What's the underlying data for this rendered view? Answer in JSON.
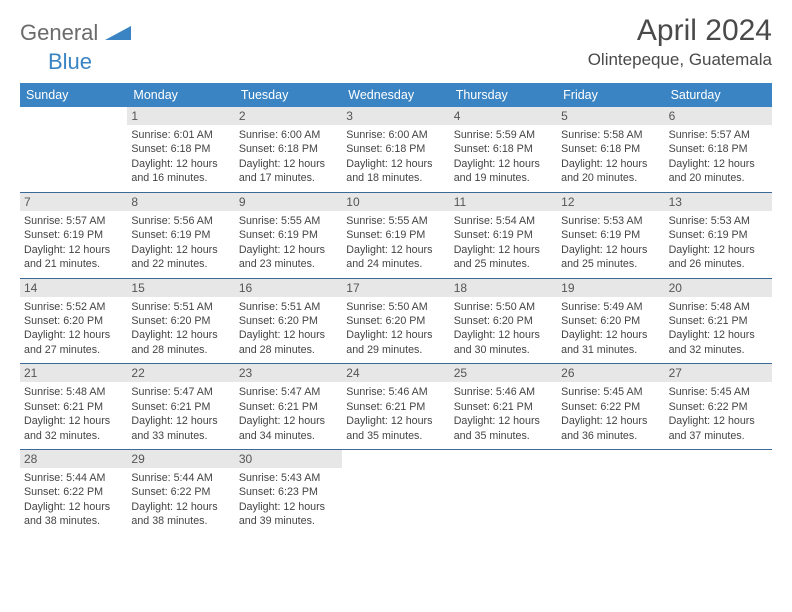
{
  "logo": {
    "part1": "General",
    "part2": "Blue"
  },
  "title": "April 2024",
  "location": "Olintepeque, Guatemala",
  "dayNames": [
    "Sunday",
    "Monday",
    "Tuesday",
    "Wednesday",
    "Thursday",
    "Friday",
    "Saturday"
  ],
  "colors": {
    "headerBlue": "#3a84c4",
    "rowBorder": "#3a6a98",
    "dayNumBg": "#e7e7e7",
    "textGray": "#4a4a4a"
  },
  "weeks": [
    [
      {
        "n": "",
        "empty": true
      },
      {
        "n": "1",
        "sr": "6:01 AM",
        "ss": "6:18 PM",
        "dl": "12 hours and 16 minutes."
      },
      {
        "n": "2",
        "sr": "6:00 AM",
        "ss": "6:18 PM",
        "dl": "12 hours and 17 minutes."
      },
      {
        "n": "3",
        "sr": "6:00 AM",
        "ss": "6:18 PM",
        "dl": "12 hours and 18 minutes."
      },
      {
        "n": "4",
        "sr": "5:59 AM",
        "ss": "6:18 PM",
        "dl": "12 hours and 19 minutes."
      },
      {
        "n": "5",
        "sr": "5:58 AM",
        "ss": "6:18 PM",
        "dl": "12 hours and 20 minutes."
      },
      {
        "n": "6",
        "sr": "5:57 AM",
        "ss": "6:18 PM",
        "dl": "12 hours and 20 minutes."
      }
    ],
    [
      {
        "n": "7",
        "sr": "5:57 AM",
        "ss": "6:19 PM",
        "dl": "12 hours and 21 minutes."
      },
      {
        "n": "8",
        "sr": "5:56 AM",
        "ss": "6:19 PM",
        "dl": "12 hours and 22 minutes."
      },
      {
        "n": "9",
        "sr": "5:55 AM",
        "ss": "6:19 PM",
        "dl": "12 hours and 23 minutes."
      },
      {
        "n": "10",
        "sr": "5:55 AM",
        "ss": "6:19 PM",
        "dl": "12 hours and 24 minutes."
      },
      {
        "n": "11",
        "sr": "5:54 AM",
        "ss": "6:19 PM",
        "dl": "12 hours and 25 minutes."
      },
      {
        "n": "12",
        "sr": "5:53 AM",
        "ss": "6:19 PM",
        "dl": "12 hours and 25 minutes."
      },
      {
        "n": "13",
        "sr": "5:53 AM",
        "ss": "6:19 PM",
        "dl": "12 hours and 26 minutes."
      }
    ],
    [
      {
        "n": "14",
        "sr": "5:52 AM",
        "ss": "6:20 PM",
        "dl": "12 hours and 27 minutes."
      },
      {
        "n": "15",
        "sr": "5:51 AM",
        "ss": "6:20 PM",
        "dl": "12 hours and 28 minutes."
      },
      {
        "n": "16",
        "sr": "5:51 AM",
        "ss": "6:20 PM",
        "dl": "12 hours and 28 minutes."
      },
      {
        "n": "17",
        "sr": "5:50 AM",
        "ss": "6:20 PM",
        "dl": "12 hours and 29 minutes."
      },
      {
        "n": "18",
        "sr": "5:50 AM",
        "ss": "6:20 PM",
        "dl": "12 hours and 30 minutes."
      },
      {
        "n": "19",
        "sr": "5:49 AM",
        "ss": "6:20 PM",
        "dl": "12 hours and 31 minutes."
      },
      {
        "n": "20",
        "sr": "5:48 AM",
        "ss": "6:21 PM",
        "dl": "12 hours and 32 minutes."
      }
    ],
    [
      {
        "n": "21",
        "sr": "5:48 AM",
        "ss": "6:21 PM",
        "dl": "12 hours and 32 minutes."
      },
      {
        "n": "22",
        "sr": "5:47 AM",
        "ss": "6:21 PM",
        "dl": "12 hours and 33 minutes."
      },
      {
        "n": "23",
        "sr": "5:47 AM",
        "ss": "6:21 PM",
        "dl": "12 hours and 34 minutes."
      },
      {
        "n": "24",
        "sr": "5:46 AM",
        "ss": "6:21 PM",
        "dl": "12 hours and 35 minutes."
      },
      {
        "n": "25",
        "sr": "5:46 AM",
        "ss": "6:21 PM",
        "dl": "12 hours and 35 minutes."
      },
      {
        "n": "26",
        "sr": "5:45 AM",
        "ss": "6:22 PM",
        "dl": "12 hours and 36 minutes."
      },
      {
        "n": "27",
        "sr": "5:45 AM",
        "ss": "6:22 PM",
        "dl": "12 hours and 37 minutes."
      }
    ],
    [
      {
        "n": "28",
        "sr": "5:44 AM",
        "ss": "6:22 PM",
        "dl": "12 hours and 38 minutes."
      },
      {
        "n": "29",
        "sr": "5:44 AM",
        "ss": "6:22 PM",
        "dl": "12 hours and 38 minutes."
      },
      {
        "n": "30",
        "sr": "5:43 AM",
        "ss": "6:23 PM",
        "dl": "12 hours and 39 minutes."
      },
      {
        "n": "",
        "empty": true
      },
      {
        "n": "",
        "empty": true
      },
      {
        "n": "",
        "empty": true
      },
      {
        "n": "",
        "empty": true
      }
    ]
  ],
  "labels": {
    "sunrise": "Sunrise:",
    "sunset": "Sunset:",
    "daylight": "Daylight:"
  }
}
